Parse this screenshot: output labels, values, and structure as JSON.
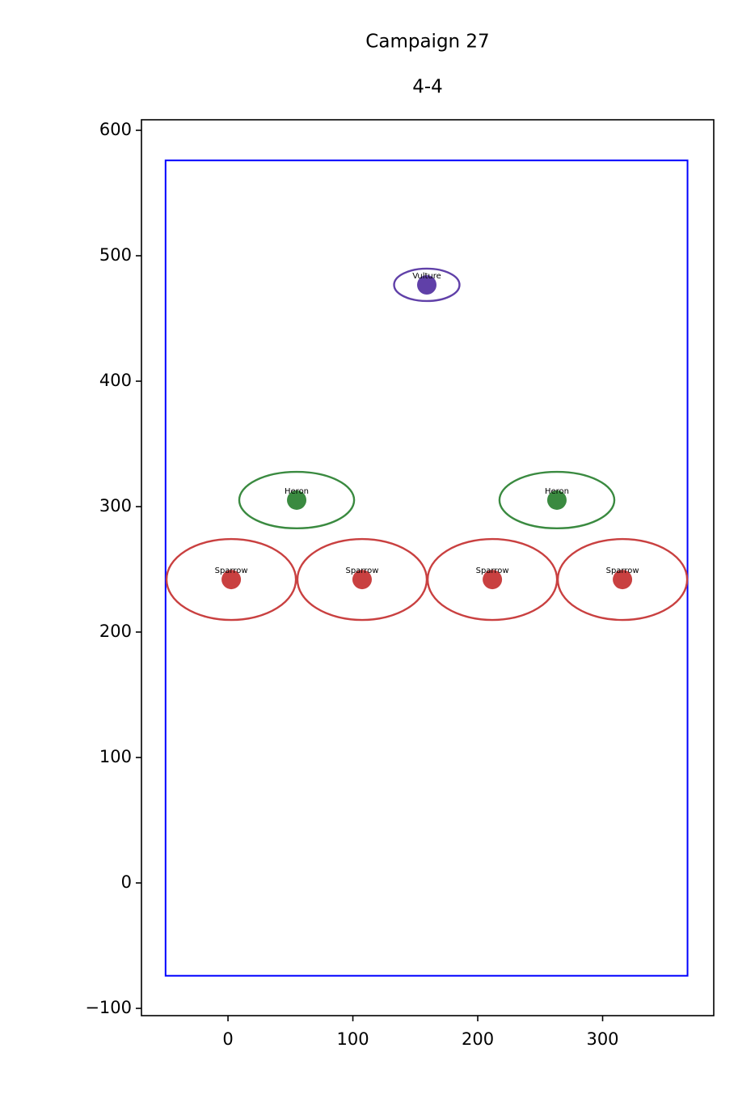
{
  "chart_data": {
    "type": "scatter",
    "title": "Campaign 27",
    "subtitle": "4-4",
    "xlim": [
      -69.3,
      389
    ],
    "ylim": [
      -105.8,
      608.4
    ],
    "xticks": [
      0,
      100,
      200,
      300
    ],
    "yticks": [
      {
        "value": -100,
        "label": "−100"
      },
      0,
      100,
      200,
      300,
      400,
      500,
      600
    ],
    "boundary": {
      "x": [
        -50,
        368
      ],
      "y": [
        -74,
        576
      ],
      "color": "#0000ff"
    },
    "points": [
      {
        "label": "Vulture",
        "x": 159.2,
        "y": 476.8,
        "width": 52.4,
        "height": 25.8,
        "color": "#6040a8"
      },
      {
        "label": "Heron",
        "x": 55,
        "y": 305.2,
        "width": 92,
        "height": 45,
        "color": "#3a8a40"
      },
      {
        "label": "Heron",
        "x": 263.4,
        "y": 305.2,
        "width": 92,
        "height": 45,
        "color": "#3a8a40"
      },
      {
        "label": "Sparrow",
        "x": 2.6,
        "y": 241.9,
        "width": 103.6,
        "height": 64.5,
        "color": "#c94040"
      },
      {
        "label": "Sparrow",
        "x": 107.4,
        "y": 241.9,
        "width": 103.6,
        "height": 64.5,
        "color": "#c94040"
      },
      {
        "label": "Sparrow",
        "x": 211.7,
        "y": 241.9,
        "width": 103.6,
        "height": 64.5,
        "color": "#c94040"
      },
      {
        "label": "Sparrow",
        "x": 315.9,
        "y": 241.9,
        "width": 103.6,
        "height": 64.5,
        "color": "#c94040"
      }
    ]
  }
}
